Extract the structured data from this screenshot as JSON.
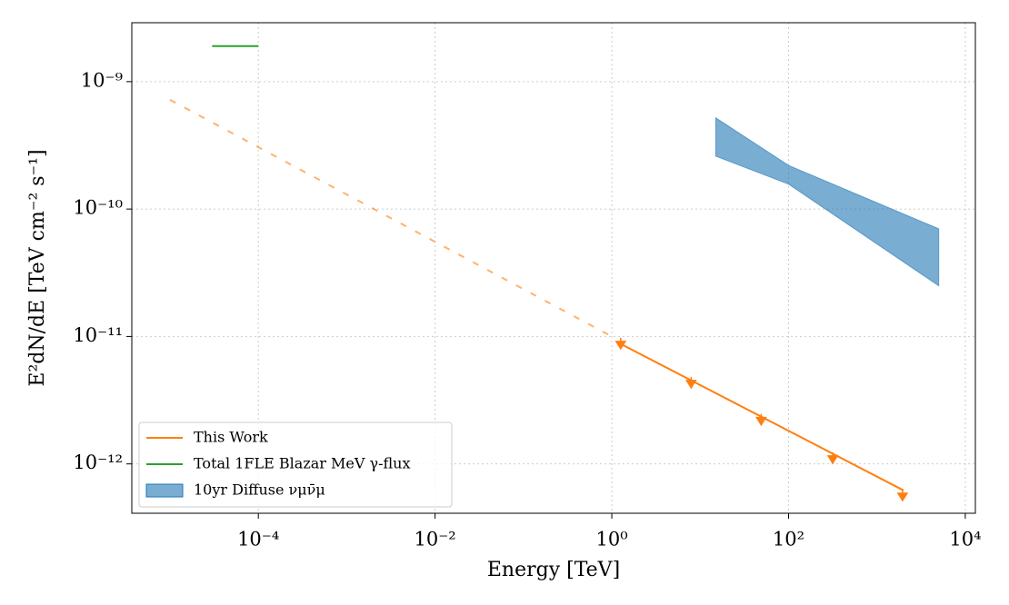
{
  "chart_data": {
    "type": "line",
    "xlabel": "Energy [TeV]",
    "ylabel": "E²dN/dE [TeV cm⁻² s⁻¹]",
    "xscale": "log",
    "yscale": "log",
    "xlim": [
      3.7e-06,
      13000.0
    ],
    "ylim": [
      4.1e-13,
      2.9e-09
    ],
    "xticks": [
      {
        "value": 0.0001,
        "label": "10⁻⁴"
      },
      {
        "value": 0.01,
        "label": "10⁻²"
      },
      {
        "value": 1,
        "label": "10⁰"
      },
      {
        "value": 100,
        "label": "10²"
      },
      {
        "value": 10000,
        "label": "10⁴"
      }
    ],
    "yticks": [
      {
        "value": 1e-12,
        "label": "10⁻¹²"
      },
      {
        "value": 1e-11,
        "label": "10⁻¹¹"
      },
      {
        "value": 1e-10,
        "label": "10⁻¹⁰"
      },
      {
        "value": 1e-09,
        "label": "10⁻⁹"
      }
    ],
    "grid": true,
    "legend": "lower left",
    "series": [
      {
        "name": "This Work",
        "color": "#ff7f0e",
        "x": [
          1.2,
          2000
        ],
        "values": [
          8.9e-12,
          6.2e-13
        ]
      },
      {
        "name": "Total 1FLE Blazar MeV γ-flux",
        "color": "#2ca02c",
        "x": [
          3e-05,
          0.0001
        ],
        "values": [
          1.9e-09,
          1.9e-09
        ]
      },
      {
        "name": "10yr Diffuse νμν̄μ",
        "color": "#1f77b4",
        "style": "band",
        "x": [
          15,
          100,
          5000
        ],
        "upper": [
          5.2e-10,
          2.2e-10,
          7e-11
        ],
        "lower": [
          2.6e-10,
          1.57e-10,
          2.5e-11
        ]
      },
      {
        "color": "#ff7f0e",
        "style": "dashed",
        "x": [
          1e-05,
          1
        ],
        "values": [
          7.2e-10,
          1e-11
        ]
      },
      {
        "color": "#ff7f0e",
        "style": "upper-limit",
        "x": [
          1.26,
          7.9,
          49,
          316,
          1950
        ],
        "values": [
          8.7e-12,
          4.3e-12,
          2.2e-12,
          1.1e-12,
          5.6e-13
        ]
      }
    ]
  }
}
